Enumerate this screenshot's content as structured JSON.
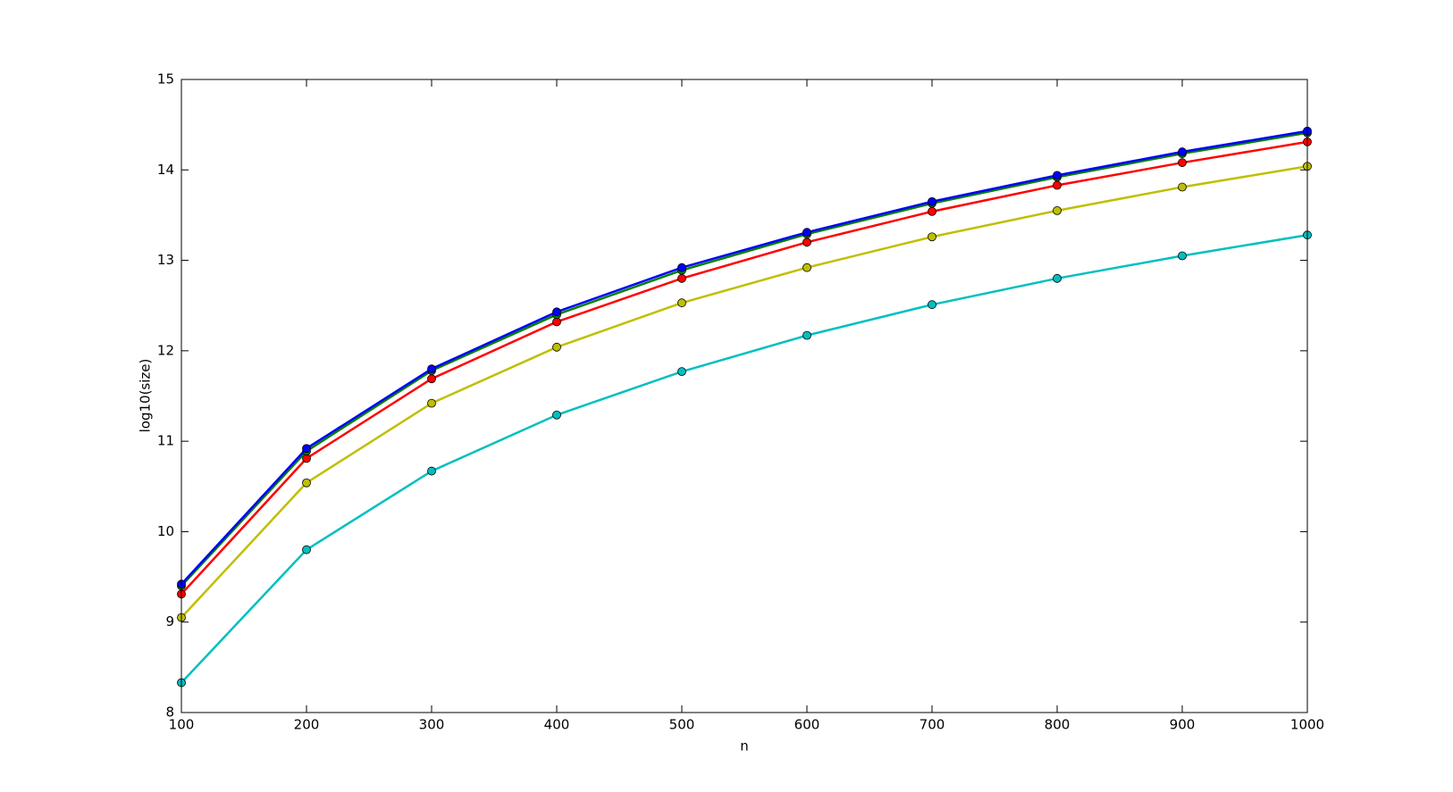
{
  "chart_data": {
    "type": "line",
    "x_label": "n",
    "y_label": "log10(size)",
    "x": [
      100,
      200,
      300,
      400,
      500,
      600,
      700,
      800,
      900,
      1000
    ],
    "series": [
      {
        "color": "#00bfbf",
        "values": [
          8.33,
          9.8,
          10.67,
          11.29,
          11.77,
          12.17,
          12.51,
          12.8,
          13.05,
          13.28
        ]
      },
      {
        "color": "#bfbf00",
        "values": [
          9.05,
          10.54,
          11.42,
          12.04,
          12.53,
          12.92,
          13.26,
          13.55,
          13.81,
          14.04
        ]
      },
      {
        "color": "#ff0000",
        "values": [
          9.31,
          10.81,
          11.69,
          12.32,
          12.8,
          13.2,
          13.54,
          13.83,
          14.08,
          14.31
        ]
      },
      {
        "color": "#008000",
        "values": [
          9.4,
          10.89,
          11.78,
          12.4,
          12.89,
          13.29,
          13.63,
          13.92,
          14.18,
          14.41
        ]
      },
      {
        "color": "#0000ff",
        "values": [
          9.42,
          10.92,
          11.8,
          12.43,
          12.92,
          13.31,
          13.65,
          13.94,
          14.2,
          14.43
        ]
      }
    ],
    "xlim": [
      100,
      1000
    ],
    "xticks": [
      100,
      200,
      300,
      400,
      500,
      600,
      700,
      800,
      900,
      1000
    ],
    "ylim": [
      8,
      15
    ],
    "yticks": [
      8,
      9,
      10,
      11,
      12,
      13,
      14,
      15
    ],
    "grid": false
  }
}
